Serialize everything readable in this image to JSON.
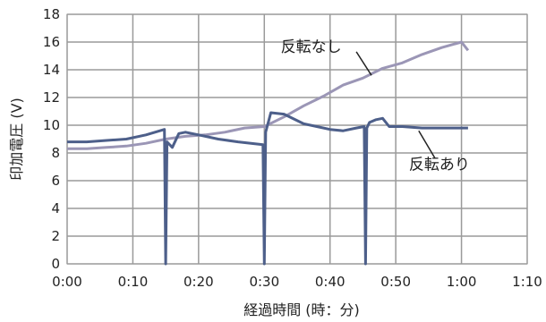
{
  "chart_data": {
    "type": "line",
    "title": "",
    "xlabel": "経過時間 (時：分)",
    "ylabel": "印加電圧 (V)",
    "xlim": [
      0,
      70
    ],
    "ylim": [
      0,
      18
    ],
    "grid": true,
    "x_ticks": [
      "0:00",
      "0:10",
      "0:20",
      "0:30",
      "0:40",
      "0:50",
      "1:00",
      "1:10"
    ],
    "y_ticks": [
      "0",
      "2",
      "4",
      "6",
      "8",
      "10",
      "12",
      "14",
      "16",
      "18"
    ],
    "series": [
      {
        "name": "反転なし",
        "color": "#9b96b6",
        "x": [
          0,
          3,
          6,
          9,
          12,
          15,
          18,
          21,
          24,
          27,
          30,
          33,
          36,
          39,
          42,
          45,
          48,
          51,
          54,
          57,
          60,
          61
        ],
        "y": [
          8.3,
          8.3,
          8.4,
          8.5,
          8.7,
          9.0,
          9.2,
          9.3,
          9.5,
          9.8,
          9.9,
          10.6,
          11.4,
          12.1,
          12.9,
          13.4,
          14.1,
          14.5,
          15.1,
          15.6,
          16.0,
          15.4
        ]
      },
      {
        "name": "反転あり",
        "color": "#4d5f8a",
        "x": [
          0,
          3,
          6,
          9,
          12,
          14.8,
          15,
          15.2,
          16,
          17,
          18,
          20,
          23,
          26,
          29.8,
          30,
          30.2,
          31,
          33,
          36,
          38,
          40,
          42,
          44,
          45.2,
          45.4,
          45.6,
          46,
          47,
          48,
          49,
          51,
          54,
          57,
          60,
          61
        ],
        "y": [
          8.8,
          8.8,
          8.9,
          9.0,
          9.3,
          9.7,
          0,
          8.8,
          8.4,
          9.4,
          9.5,
          9.3,
          9.0,
          8.8,
          8.6,
          0,
          9.5,
          10.9,
          10.8,
          10.1,
          9.9,
          9.7,
          9.6,
          9.8,
          9.9,
          0,
          9.8,
          10.2,
          10.4,
          10.5,
          9.9,
          9.9,
          9.8,
          9.8,
          9.8,
          9.8
        ]
      }
    ],
    "annotations": [
      {
        "text": "反転なし"
      },
      {
        "text": "反転あり"
      }
    ]
  }
}
